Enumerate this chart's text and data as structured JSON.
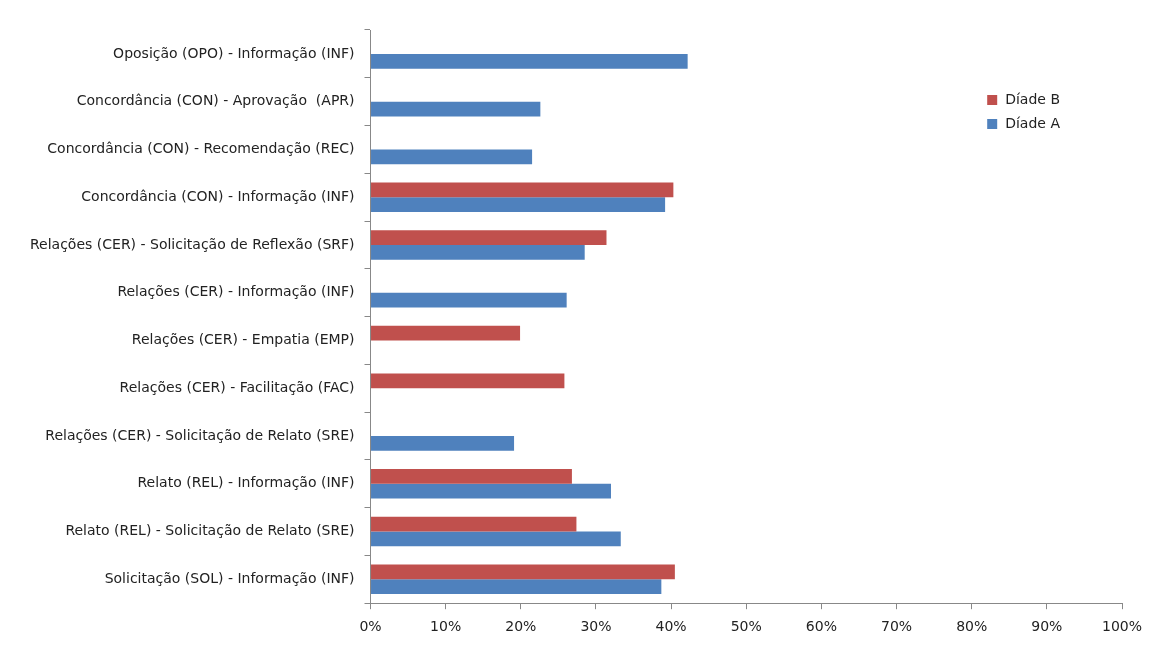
{
  "chart_data": {
    "type": "bar",
    "orientation": "horizontal",
    "categories": [
      "Oposição (OPO) - Informação (INF)",
      "Concordância (CON) - Aprovação  (APR)",
      "Concordância (CON) - Recomendação (REC)",
      "Concordância (CON) - Informação (INF)",
      "Relações (CER) - Solicitação de Reflexão (SRF)",
      "Relações (CER) - Informação (INF)",
      "Relações (CER) - Empatia (EMP)",
      "Relações (CER) - Facilitação (FAC)",
      "Relações (CER) - Solicitação de Relato (SRE)",
      "Relato (REL) - Informação (INF)",
      "Relato (REL) - Solicitação de Relato (SRE)",
      "Solicitação (SOL) - Informação (INF)"
    ],
    "series": [
      {
        "name": "Díade B",
        "color": "#c0504d",
        "values": [
          null,
          null,
          null,
          40.3,
          31.4,
          null,
          19.9,
          25.8,
          null,
          26.8,
          27.4,
          40.5
        ]
      },
      {
        "name": "Díade A",
        "color": "#4f81bd",
        "values": [
          42.2,
          22.6,
          21.5,
          39.2,
          28.5,
          26.1,
          null,
          null,
          19.1,
          32.0,
          33.3,
          38.7
        ]
      }
    ],
    "xlim": [
      0,
      100
    ],
    "xticks": [
      {
        "value": 0,
        "label": "0%"
      },
      {
        "value": 10,
        "label": "10%"
      },
      {
        "value": 20,
        "label": "20%"
      },
      {
        "value": 30,
        "label": "30%"
      },
      {
        "value": 40,
        "label": "40%"
      },
      {
        "value": 50,
        "label": "50%"
      },
      {
        "value": 60,
        "label": "60%"
      },
      {
        "value": 70,
        "label": "70%"
      },
      {
        "value": 80,
        "label": "80%"
      },
      {
        "value": 90,
        "label": "90%"
      },
      {
        "value": 100,
        "label": "100%"
      }
    ],
    "grid": false,
    "legend": "top right"
  }
}
